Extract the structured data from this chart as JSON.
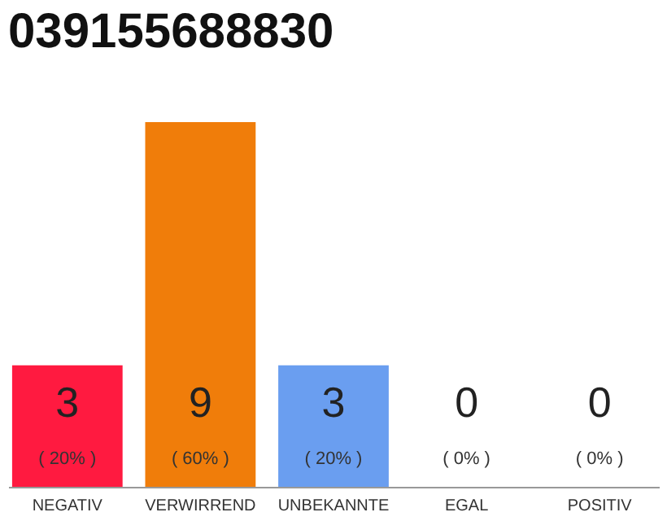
{
  "chart_data": {
    "type": "bar",
    "title": "039155688830",
    "categories": [
      "NEGATIV",
      "VERWIRREND",
      "UNBEKANNTE",
      "EGAL",
      "POSITIV"
    ],
    "values": [
      3,
      9,
      3,
      0,
      0
    ],
    "colors": [
      "#ff1a40",
      "#f07d0a",
      "#6a9ef0",
      "#bbbbbb",
      "#bbbbbb"
    ],
    "data_labels": true,
    "annotations": [
      "( 20% )",
      "( 60% )",
      "( 20% )",
      "( 0% )",
      "( 0% )"
    ]
  }
}
